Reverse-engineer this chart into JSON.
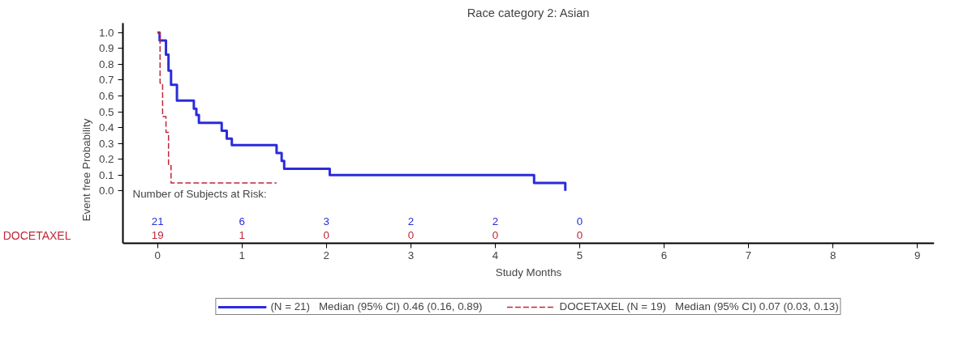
{
  "chart_data": {
    "type": "step",
    "title": "Race category 2: Asian",
    "xlabel": "Study Months",
    "ylabel": "Event free Probability",
    "xlim": [
      -0.41,
      9.2
    ],
    "ylim": [
      -0.33,
      1.06
    ],
    "xticks": [
      0,
      1,
      2,
      3,
      4,
      5,
      6,
      7,
      8,
      9
    ],
    "yticks": [
      {
        "value": 0,
        "label": "0.0"
      },
      {
        "value": 0.1,
        "label": "0.1"
      },
      {
        "value": 0.2,
        "label": "0.2"
      },
      {
        "value": 0.3,
        "label": "0.3"
      },
      {
        "value": 0.4,
        "label": "0.4"
      },
      {
        "value": 0.5,
        "label": "0.5"
      },
      {
        "value": 0.6,
        "label": "0.6"
      },
      {
        "value": 0.7,
        "label": "0.7"
      },
      {
        "value": 0.8,
        "label": "0.8"
      },
      {
        "value": 0.9,
        "label": "0.9"
      },
      {
        "value": 1,
        "label": "1.0"
      }
    ],
    "grid": false,
    "legend": "bottom",
    "series": [
      {
        "name": "(N = 21)   Median (95% CI) 0.46 (0.16, 0.89)",
        "color": "#2b2bdc",
        "line_style": "solid",
        "x": [
          0,
          0.025,
          0.1,
          0.13,
          0.16,
          0.23,
          0.43,
          0.46,
          0.49,
          0.76,
          0.82,
          0.88,
          1.41,
          1.47,
          1.5,
          2.04,
          4.46,
          4.83
        ],
        "values": [
          1,
          0.95,
          0.86,
          0.76,
          0.67,
          0.57,
          0.52,
          0.48,
          0.43,
          0.38,
          0.33,
          0.29,
          0.24,
          0.19,
          0.14,
          0.1,
          0.05,
          0
        ]
      },
      {
        "name": "DOCETAXEL (N = 19)   Median (95% CI) 0.07 (0.03, 0.13)",
        "color": "#c0263a",
        "line_style": "dashed",
        "x": [
          0,
          0.03,
          0.06,
          0.1,
          0.13,
          0.16,
          1.41
        ],
        "values": [
          1,
          0.68,
          0.47,
          0.37,
          0.16,
          0.05,
          0.05
        ]
      }
    ],
    "annotations": [
      "Number of Subjects at Risk:",
      "21",
      "6",
      "3",
      "2",
      "2",
      "0",
      "DOCETAXEL",
      "19",
      "1",
      "0",
      "0",
      "0",
      "0"
    ]
  }
}
